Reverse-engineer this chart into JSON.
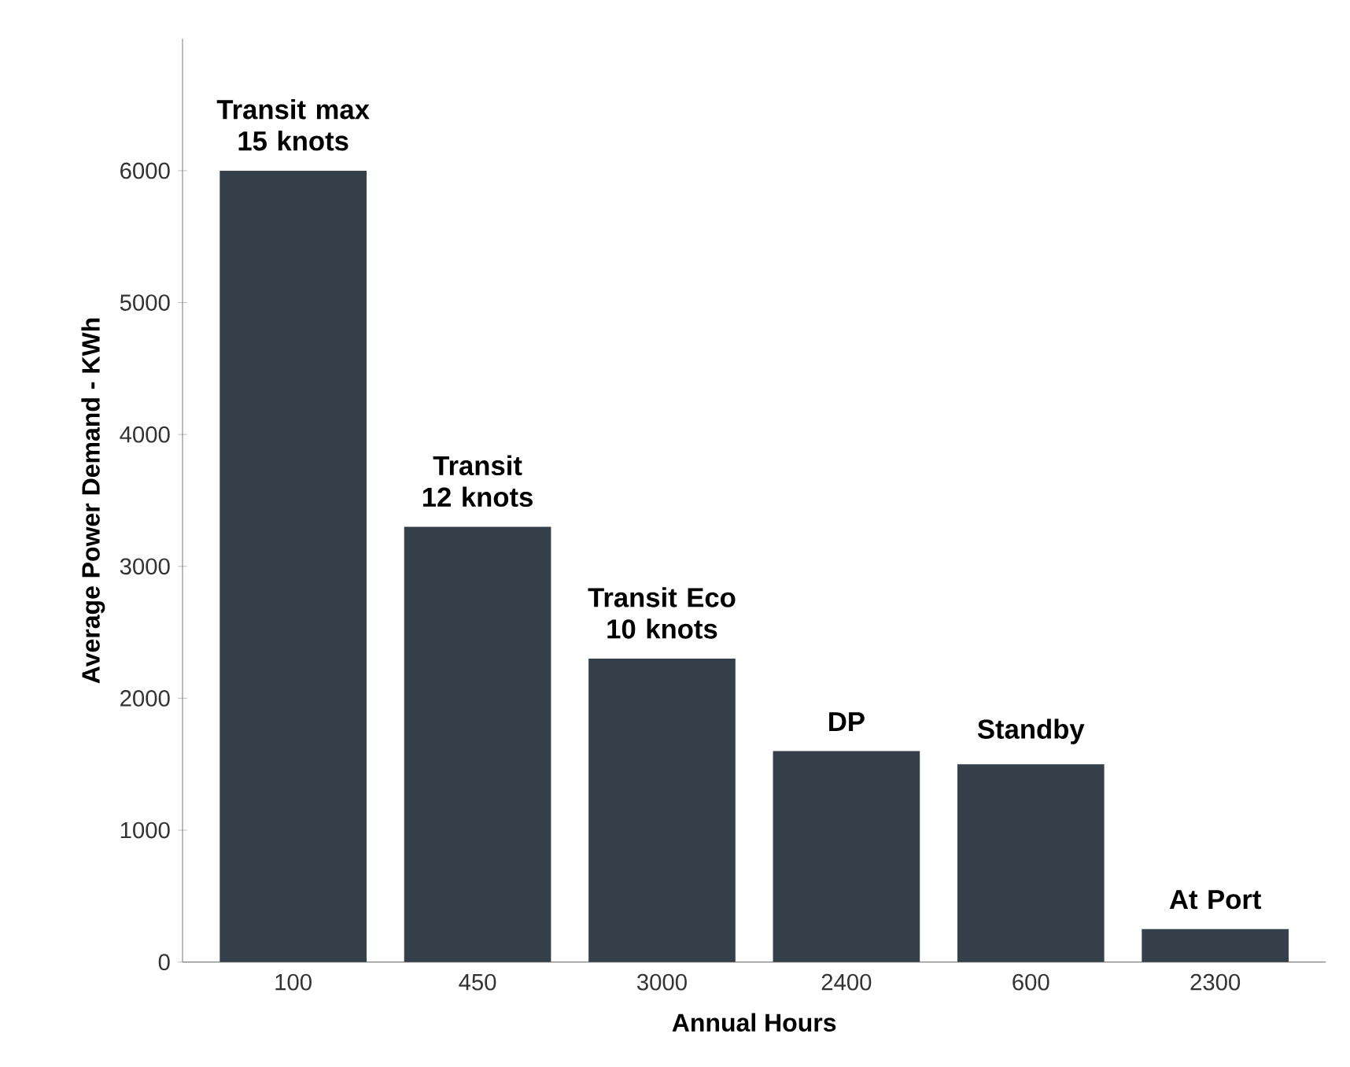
{
  "chart_data": {
    "type": "bar",
    "xlabel": "Annual Hours",
    "ylabel": "Average Power Demand - KWh",
    "categories": [
      "100",
      "450",
      "3000",
      "2400",
      "600",
      "2300"
    ],
    "values": [
      6000,
      3300,
      2300,
      1600,
      1500,
      250
    ],
    "color": "#36404b",
    "ylim": [
      0,
      7000
    ],
    "yticks": [
      0,
      1000,
      2000,
      3000,
      4000,
      5000,
      6000
    ],
    "annotations": [
      "Transit max 15 knots",
      "Transit 12 knots",
      "Transit Eco 10 knots",
      "DP",
      "Standby",
      "At Port"
    ]
  }
}
